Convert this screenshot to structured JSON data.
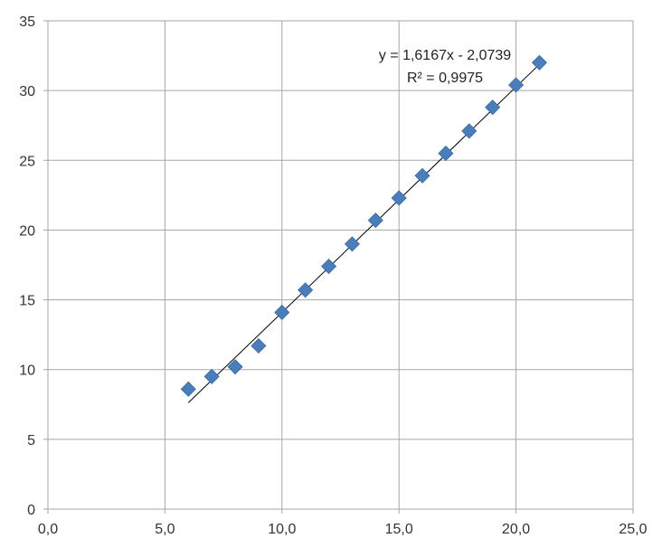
{
  "chart_data": {
    "type": "scatter",
    "x": [
      6,
      7,
      8,
      9,
      10,
      11,
      12,
      13,
      14,
      15,
      16,
      17,
      18,
      19,
      20,
      21
    ],
    "y": [
      8.6,
      9.5,
      10.2,
      11.7,
      14.1,
      15.7,
      17.4,
      19.0,
      20.7,
      22.3,
      23.9,
      25.5,
      27.1,
      28.8,
      30.4,
      32.0
    ],
    "xlim": [
      0,
      25
    ],
    "ylim": [
      0,
      35
    ],
    "x_ticks": [
      "0,0",
      "5,0",
      "10,0",
      "15,0",
      "20,0",
      "25,0"
    ],
    "y_ticks": [
      "0",
      "5",
      "10",
      "15",
      "20",
      "25",
      "30",
      "35"
    ],
    "grid": true,
    "marker": "diamond",
    "marker_color": "#4A7EBB",
    "trendline": {
      "type": "linear",
      "slope": 1.6167,
      "intercept": -2.0739,
      "x_range": [
        6,
        21
      ],
      "equation": "y = 1,6167x - 2,0739",
      "r_squared": "R² = 0,9975"
    }
  }
}
